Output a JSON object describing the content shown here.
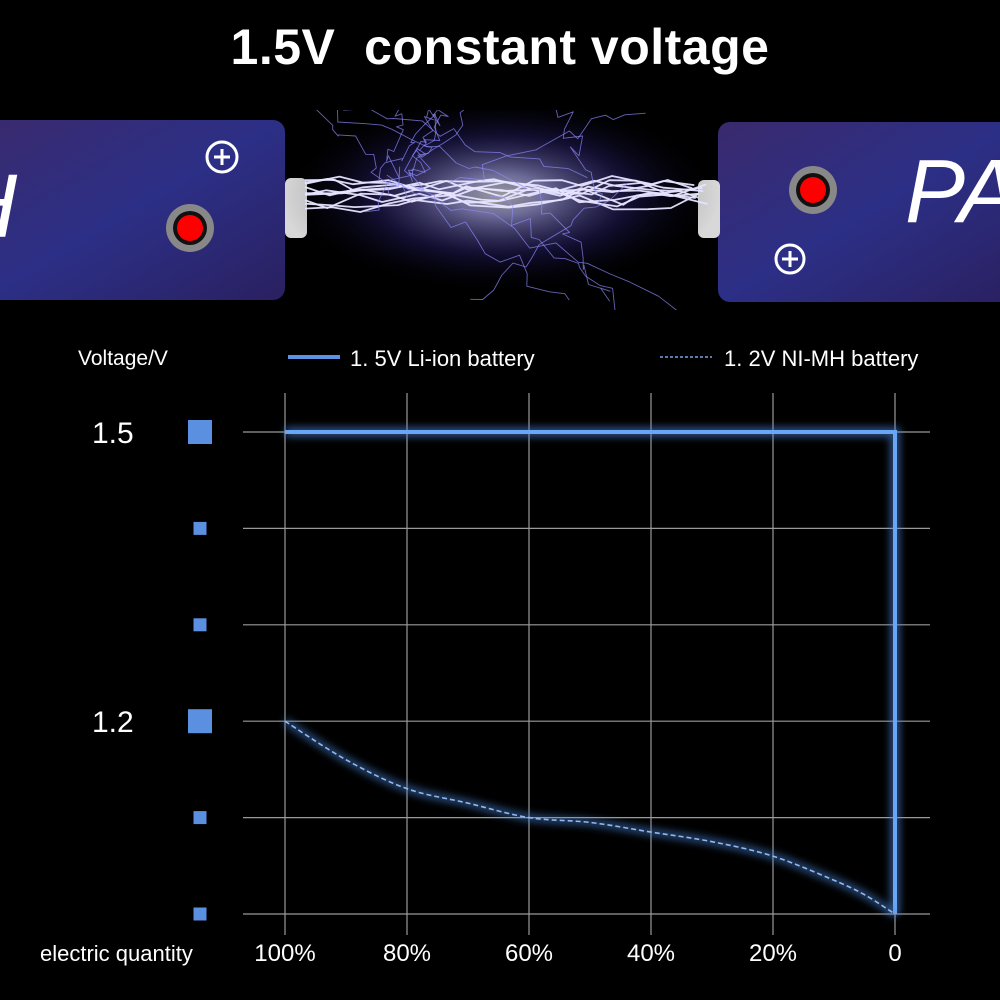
{
  "title": "1.5V  constant voltage",
  "hero": {
    "logo_left": "PA",
    "logo_right": "PA",
    "plus_icon": "plus-circle-icon",
    "colors": {
      "battery": "#2a2a7a",
      "terminal": "#ff0000",
      "spark": "#8f8cff"
    }
  },
  "chart_data": {
    "type": "line",
    "ylabel": "Voltage/V",
    "xlabel": "electric quantity",
    "x_ticks": [
      "100%",
      "80%",
      "60%",
      "40%",
      "20%",
      "0"
    ],
    "y_tick_labels": [
      {
        "value": 1.5,
        "label": "1.5"
      },
      {
        "value": 1.2,
        "label": "1.2"
      }
    ],
    "y_gridlines": [
      1.5,
      1.4,
      1.3,
      1.2,
      1.1,
      1.0
    ],
    "x_gridlines": [
      100,
      80,
      60,
      40,
      20,
      0
    ],
    "xlim": [
      100,
      0
    ],
    "ylim": [
      1.0,
      1.5
    ],
    "grid": true,
    "legend_placement": "top",
    "series": [
      {
        "name": "1. 5V Li-ion battery",
        "style": "solid",
        "color": "#4f8fe8",
        "x": [
          100,
          0,
          0
        ],
        "y": [
          1.5,
          1.5,
          1.0
        ]
      },
      {
        "name": "1. 2V NI-MH battery",
        "style": "dashed",
        "color": "#4f8fe8",
        "x": [
          100,
          90,
          80,
          70,
          60,
          50,
          40,
          30,
          20,
          10,
          5,
          0
        ],
        "y": [
          1.2,
          1.16,
          1.13,
          1.115,
          1.1,
          1.095,
          1.085,
          1.075,
          1.06,
          1.035,
          1.02,
          1.0
        ]
      }
    ]
  }
}
